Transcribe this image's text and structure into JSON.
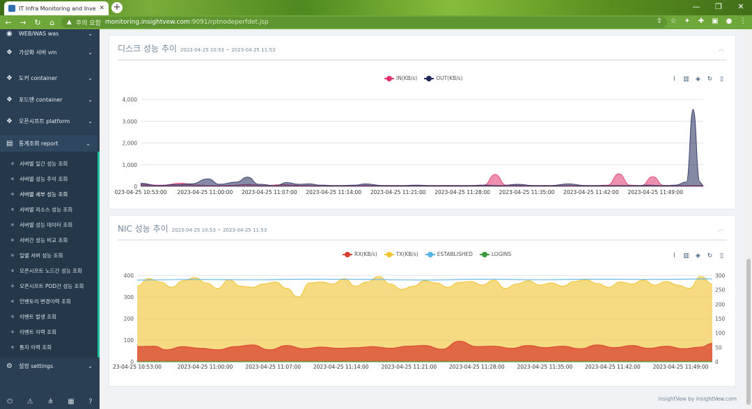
{
  "browser": {
    "tab_title": "IT Infra Monitoring and Inventory",
    "tab_close": "✕",
    "new_tab": "+",
    "warning_label": "주의 요함",
    "url_host": "monitoring.insightvew.com",
    "url_path": ":9091/rptnodeperfdet.jsp",
    "window_controls": [
      "—",
      "❐",
      "✕"
    ]
  },
  "sidebar": {
    "menus": [
      {
        "label": "WEB/WAS was",
        "icon": "globe-icon"
      },
      {
        "label": "가상화 서버 vm",
        "icon": "cubes-icon"
      },
      {
        "label": "도커 container",
        "icon": "cubes-icon"
      },
      {
        "label": "포드맨 container",
        "icon": "cubes-icon"
      },
      {
        "label": "오픈시프트 platform",
        "icon": "cubes-icon"
      },
      {
        "label": "통계조회 report",
        "icon": "report-icon"
      },
      {
        "label": "설정 settings",
        "icon": "gears-icon"
      }
    ],
    "report_items": [
      "서버별 일간 성능 조회",
      "서버별 성능 추이 조회",
      "서버별 세부 성능 조회",
      "서버별 리소스 성능 조회",
      "서버별 성능 데이터 조회",
      "서버간 성능 비교 조회",
      "일별 서버 성능 조회",
      "오픈시프트 노드간 성능 조회",
      "오픈시프트 POD간 성능 조회",
      "인벤토리 변경이력 조회",
      "이벤트 발생 조회",
      "이벤트 이력 조회",
      "통지 이력 조회"
    ],
    "active_index": 2
  },
  "disk_panel": {
    "title": "디스크 성능 추이",
    "range": "2023-04-25 10:53 ~ 2023-04-25 11:53"
  },
  "nic_panel": {
    "title": "NIC 성능 추이",
    "range": "2023-04-25 10:53 ~ 2023-04-25 11:53"
  },
  "footer": "insightVew by insightVew.com",
  "chart_data": [
    {
      "type": "area",
      "x": [
        "023-04-25 10:53:00",
        "2023-04-25 11:00:00",
        "2023-04-25 11:07:00",
        "2023-04-25 11:14:00",
        "2023-04-25 11:21:00",
        "2023-04-25 11:28:00",
        "2023-04-25 11:35:00",
        "2023-04-25 11:42:00",
        "2023-04-25 11:49:00"
      ],
      "yticks": [
        "4,000",
        "3,000",
        "2,000",
        "1,000",
        "0"
      ],
      "ylim": [
        0,
        4000
      ],
      "series": [
        {
          "name": "IN(KB/s)",
          "color": "#e0336e",
          "points": [
            [
              0,
              80
            ],
            [
              4,
              60
            ],
            [
              7,
              150
            ],
            [
              10,
              60
            ],
            [
              13,
              40
            ],
            [
              16,
              50
            ],
            [
              19,
              90
            ],
            [
              22,
              40
            ],
            [
              25,
              80
            ],
            [
              28,
              50
            ],
            [
              31,
              40
            ],
            [
              34,
              40
            ],
            [
              37,
              30
            ],
            [
              40,
              40
            ],
            [
              43,
              40
            ],
            [
              46,
              40
            ],
            [
              49,
              40
            ],
            [
              52,
              40
            ],
            [
              55,
              40
            ],
            [
              58,
              40
            ],
            [
              61,
              60
            ],
            [
              63,
              550
            ],
            [
              65,
              60
            ],
            [
              68,
              50
            ],
            [
              71,
              40
            ],
            [
              74,
              40
            ],
            [
              77,
              40
            ],
            [
              80,
              40
            ],
            [
              83,
              60
            ],
            [
              85,
              580
            ],
            [
              87,
              60
            ],
            [
              89,
              40
            ],
            [
              91,
              450
            ],
            [
              93,
              50
            ],
            [
              96,
              40
            ],
            [
              98,
              40
            ],
            [
              100,
              40
            ]
          ]
        },
        {
          "name": "OUT(KB/s)",
          "color": "#1f2a5a",
          "points": [
            [
              0,
              150
            ],
            [
              3,
              40
            ],
            [
              6,
              80
            ],
            [
              9,
              120
            ],
            [
              12,
              350
            ],
            [
              14,
              100
            ],
            [
              17,
              200
            ],
            [
              19,
              430
            ],
            [
              21,
              100
            ],
            [
              24,
              40
            ],
            [
              26,
              180
            ],
            [
              28,
              100
            ],
            [
              30,
              120
            ],
            [
              32,
              60
            ],
            [
              35,
              40
            ],
            [
              38,
              60
            ],
            [
              40,
              120
            ],
            [
              43,
              40
            ],
            [
              46,
              40
            ],
            [
              49,
              60
            ],
            [
              52,
              40
            ],
            [
              55,
              40
            ],
            [
              58,
              40
            ],
            [
              61,
              60
            ],
            [
              64,
              40
            ],
            [
              67,
              100
            ],
            [
              70,
              40
            ],
            [
              73,
              40
            ],
            [
              76,
              120
            ],
            [
              79,
              40
            ],
            [
              82,
              40
            ],
            [
              85,
              40
            ],
            [
              88,
              40
            ],
            [
              90,
              60
            ],
            [
              93,
              40
            ],
            [
              95,
              60
            ],
            [
              97,
              200
            ],
            [
              98.2,
              3550
            ],
            [
              99.4,
              200
            ],
            [
              100,
              40
            ]
          ]
        }
      ]
    },
    {
      "type": "area",
      "x": [
        "23-04-25 10:53:00",
        "2023-04-25 11:00:00",
        "2023-04-25 11:07:00",
        "2023-04-25 11:14:00",
        "2023-04-25 11:21:00",
        "2023-04-25 11:28:00",
        "2023-04-25 11:35:00",
        "2023-04-25 11:42:00",
        "2023-04-25 11:49:00"
      ],
      "yticks_left": [
        "400",
        "300",
        "200",
        "100",
        "0"
      ],
      "yticks_right": [
        "300",
        "250",
        "200",
        "150",
        "100",
        "50",
        "0"
      ],
      "ylim_left": [
        0,
        400
      ],
      "ylim_right": [
        0,
        300
      ],
      "series": [
        {
          "name": "RX(KB/s)",
          "color": "#d9412f",
          "axis": "left",
          "points": [
            [
              0,
              70
            ],
            [
              3,
              72
            ],
            [
              5,
              55
            ],
            [
              8,
              70
            ],
            [
              11,
              62
            ],
            [
              14,
              55
            ],
            [
              17,
              70
            ],
            [
              20,
              78
            ],
            [
              23,
              55
            ],
            [
              26,
              75
            ],
            [
              29,
              60
            ],
            [
              32,
              68
            ],
            [
              35,
              62
            ],
            [
              38,
              65
            ],
            [
              41,
              70
            ],
            [
              44,
              62
            ],
            [
              47,
              72
            ],
            [
              50,
              75
            ],
            [
              53,
              58
            ],
            [
              56,
              95
            ],
            [
              59,
              70
            ],
            [
              62,
              72
            ],
            [
              65,
              62
            ],
            [
              68,
              75
            ],
            [
              71,
              65
            ],
            [
              74,
              72
            ],
            [
              77,
              60
            ],
            [
              80,
              78
            ],
            [
              83,
              65
            ],
            [
              86,
              75
            ],
            [
              89,
              62
            ],
            [
              92,
              72
            ],
            [
              95,
              60
            ],
            [
              98,
              68
            ],
            [
              100,
              85
            ]
          ]
        },
        {
          "name": "TX(KB/s)",
          "color": "#f0c330",
          "axis": "left",
          "points": [
            [
              0,
              350
            ],
            [
              2,
              385
            ],
            [
              4,
              370
            ],
            [
              6,
              345
            ],
            [
              8,
              375
            ],
            [
              10,
              390
            ],
            [
              12,
              365
            ],
            [
              14,
              340
            ],
            [
              16,
              380
            ],
            [
              18,
              350
            ],
            [
              20,
              345
            ],
            [
              22,
              360
            ],
            [
              24,
              370
            ],
            [
              26,
              340
            ],
            [
              28,
              300
            ],
            [
              30,
              365
            ],
            [
              32,
              370
            ],
            [
              34,
              360
            ],
            [
              36,
              385
            ],
            [
              38,
              350
            ],
            [
              40,
              370
            ],
            [
              42,
              395
            ],
            [
              44,
              360
            ],
            [
              46,
              335
            ],
            [
              48,
              350
            ],
            [
              50,
              375
            ],
            [
              52,
              365
            ],
            [
              54,
              345
            ],
            [
              56,
              368
            ],
            [
              58,
              372
            ],
            [
              60,
              355
            ],
            [
              62,
              378
            ],
            [
              64,
              340
            ],
            [
              66,
              360
            ],
            [
              68,
              375
            ],
            [
              70,
              355
            ],
            [
              72,
              365
            ],
            [
              74,
              350
            ],
            [
              76,
              372
            ],
            [
              78,
              380
            ],
            [
              80,
              362
            ],
            [
              82,
              345
            ],
            [
              84,
              370
            ],
            [
              86,
              360
            ],
            [
              88,
              378
            ],
            [
              90,
              355
            ],
            [
              92,
              372
            ],
            [
              94,
              355
            ],
            [
              96,
              340
            ],
            [
              98,
              395
            ],
            [
              100,
              360
            ]
          ]
        },
        {
          "name": "ESTABLISHED",
          "color": "#5ab4e6",
          "axis": "right",
          "points": [
            [
              0,
              284
            ],
            [
              10,
              286
            ],
            [
              20,
              285
            ],
            [
              30,
              287
            ],
            [
              40,
              286
            ],
            [
              50,
              284
            ],
            [
              60,
              287
            ],
            [
              70,
              285
            ],
            [
              80,
              287
            ],
            [
              90,
              286
            ],
            [
              100,
              288
            ]
          ]
        },
        {
          "name": "LOGINS",
          "color": "#3c9a3c",
          "axis": "right",
          "points": [
            [
              0,
              0
            ],
            [
              100,
              0
            ]
          ]
        }
      ]
    }
  ]
}
